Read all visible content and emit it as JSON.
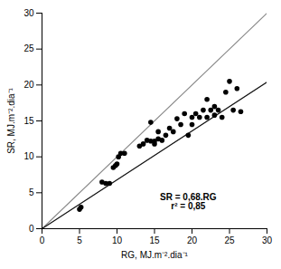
{
  "chart_data": {
    "type": "scatter",
    "xlabel": "RG, MJ.m⁻².dia⁻¹",
    "ylabel": "SR, MJ.m⁻².dia⁻¹",
    "xlim": [
      0,
      30
    ],
    "ylim": [
      0,
      30
    ],
    "xticks": [
      0,
      5,
      10,
      15,
      20,
      25,
      30
    ],
    "yticks": [
      0,
      5,
      10,
      15,
      20,
      25,
      30
    ],
    "grid": false,
    "series": [
      {
        "type": "line",
        "color": "#888888",
        "x": [
          0,
          30
        ],
        "values": [
          0,
          30
        ]
      },
      {
        "type": "line",
        "color": "#111111",
        "x": [
          0,
          30
        ],
        "values": [
          0,
          20.4
        ]
      },
      {
        "type": "scatter",
        "color": "#000000",
        "x": [
          5.0,
          5.2,
          8.0,
          8.5,
          9.0,
          9.5,
          9.8,
          10.0,
          10.2,
          10.5,
          11.0,
          13.0,
          13.5,
          14.0,
          14.5,
          14.5,
          15.0,
          15.0,
          15.5,
          15.5,
          16.0,
          16.5,
          17.0,
          17.5,
          18.0,
          18.5,
          19.0,
          19.5,
          20.0,
          20.0,
          20.5,
          21.0,
          21.5,
          22.0,
          22.0,
          22.5,
          23.0,
          23.0,
          23.5,
          24.0,
          24.5,
          25.0,
          25.5,
          26.0,
          26.5
        ],
        "values": [
          2.7,
          3.0,
          6.5,
          6.3,
          6.3,
          8.5,
          8.8,
          9.0,
          10.0,
          10.5,
          10.5,
          11.5,
          11.8,
          12.3,
          12.2,
          14.8,
          11.8,
          12.2,
          12.5,
          13.5,
          12.3,
          13.0,
          14.0,
          13.5,
          15.3,
          14.5,
          16.0,
          13.0,
          14.5,
          15.5,
          16.0,
          15.5,
          16.5,
          15.5,
          18.0,
          16.5,
          15.8,
          17.0,
          16.5,
          15.5,
          19.0,
          20.5,
          16.5,
          19.5,
          16.3
        ]
      }
    ],
    "annotations": [
      {
        "text": "SR = 0,68.RG\nr² = 0,85",
        "x": 19.5,
        "y": 3.8
      }
    ]
  }
}
